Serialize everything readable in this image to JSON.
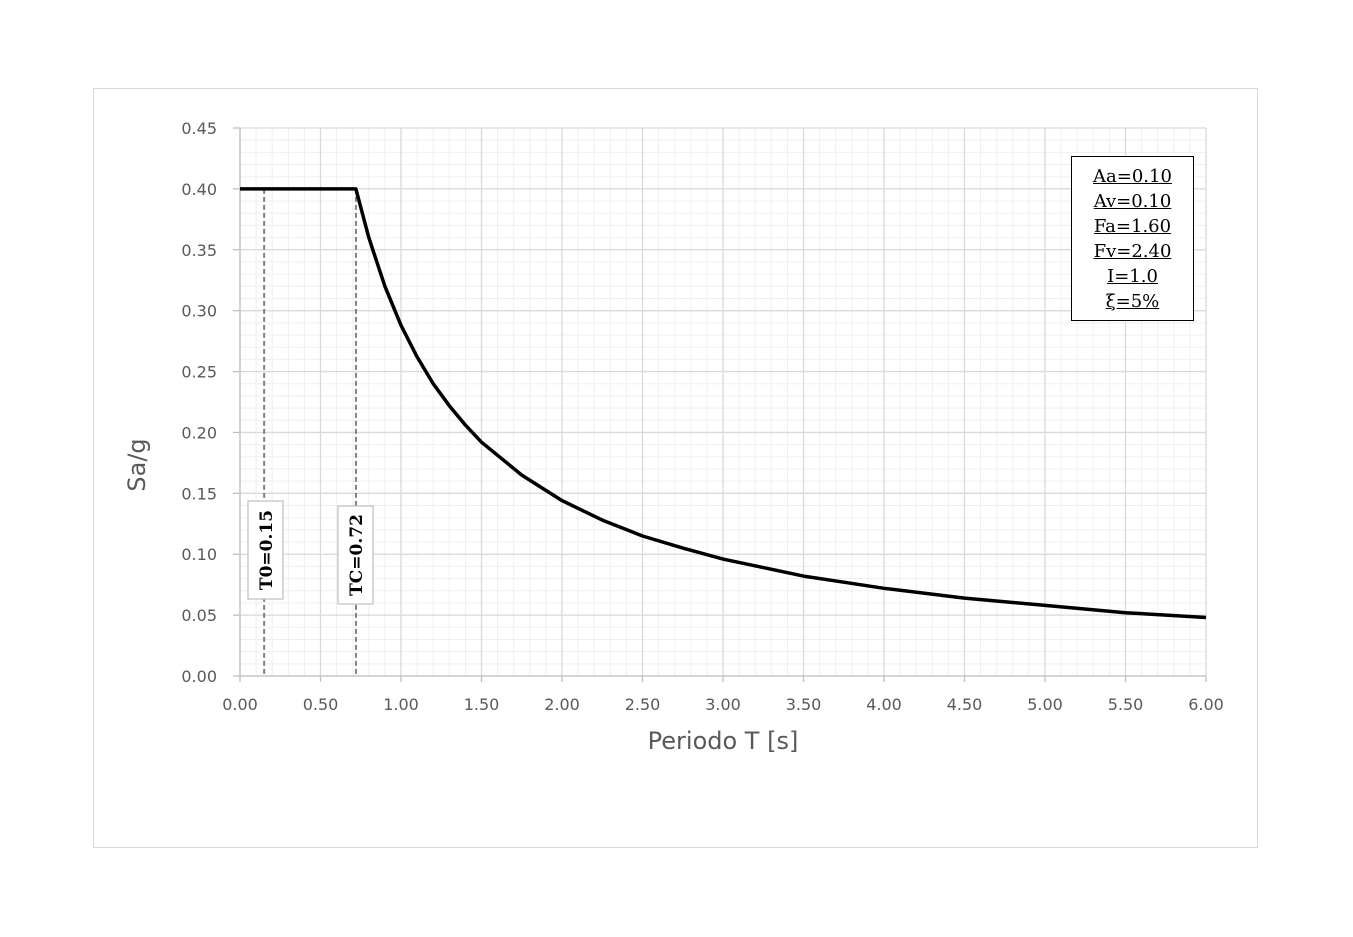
{
  "chart_data": {
    "type": "line",
    "title": "",
    "xlabel": "Periodo T [s]",
    "ylabel": "Sa/g",
    "xlim": [
      0,
      6
    ],
    "ylim": [
      0,
      0.45
    ],
    "x_ticks": [
      "0.00",
      "0.50",
      "1.00",
      "1.50",
      "2.00",
      "2.50",
      "3.00",
      "3.50",
      "4.00",
      "4.50",
      "5.00",
      "5.50",
      "6.00"
    ],
    "y_ticks": [
      "0.00",
      "0.05",
      "0.10",
      "0.15",
      "0.20",
      "0.25",
      "0.30",
      "0.35",
      "0.40",
      "0.45"
    ],
    "grid": {
      "major": true,
      "minor": true,
      "x_minor_step": 0.1,
      "y_minor_step": 0.01
    },
    "legend": "none",
    "series": [
      {
        "name": "Sa/g",
        "color": "#000000",
        "x": [
          0.0,
          0.15,
          0.72,
          0.8,
          0.9,
          1.0,
          1.1,
          1.2,
          1.3,
          1.4,
          1.5,
          1.75,
          2.0,
          2.25,
          2.5,
          2.75,
          3.0,
          3.25,
          3.5,
          3.75,
          4.0,
          4.5,
          5.0,
          5.5,
          6.0
        ],
        "values": [
          0.4,
          0.4,
          0.4,
          0.36,
          0.32,
          0.288,
          0.262,
          0.24,
          0.222,
          0.206,
          0.192,
          0.165,
          0.144,
          0.128,
          0.115,
          0.105,
          0.096,
          0.089,
          0.082,
          0.077,
          0.072,
          0.064,
          0.058,
          0.052,
          0.048
        ]
      }
    ],
    "annotations": [
      {
        "type": "vline",
        "x": 0.15,
        "style": "dashed",
        "color": "#808080",
        "label": "T0=0.15"
      },
      {
        "type": "vline",
        "x": 0.72,
        "style": "dashed",
        "color": "#808080",
        "label": "TC=0.72"
      }
    ],
    "parameters_box": [
      "Aa=0.10",
      "Av=0.10",
      "Fa=1.60",
      "Fv=2.40",
      "I=1.0",
      "ξ=5%"
    ]
  },
  "axes": {
    "x_title": "Periodo T [s]",
    "y_title": "Sa/g"
  },
  "markers": {
    "t0_label": "T0=0.15",
    "tc_label": "TC=0.72"
  },
  "params": {
    "aa": "Aa=0.10",
    "av": "Av=0.10",
    "fa": "Fa=1.60",
    "fv": "Fv=2.40",
    "i": "I=1.0",
    "xi": "ξ=5%"
  },
  "colors": {
    "curve": "#000000",
    "major_grid": "#d9d9d9",
    "minor_grid": "#efefef",
    "dashed_marker": "#808080",
    "tick_text": "#595959"
  }
}
